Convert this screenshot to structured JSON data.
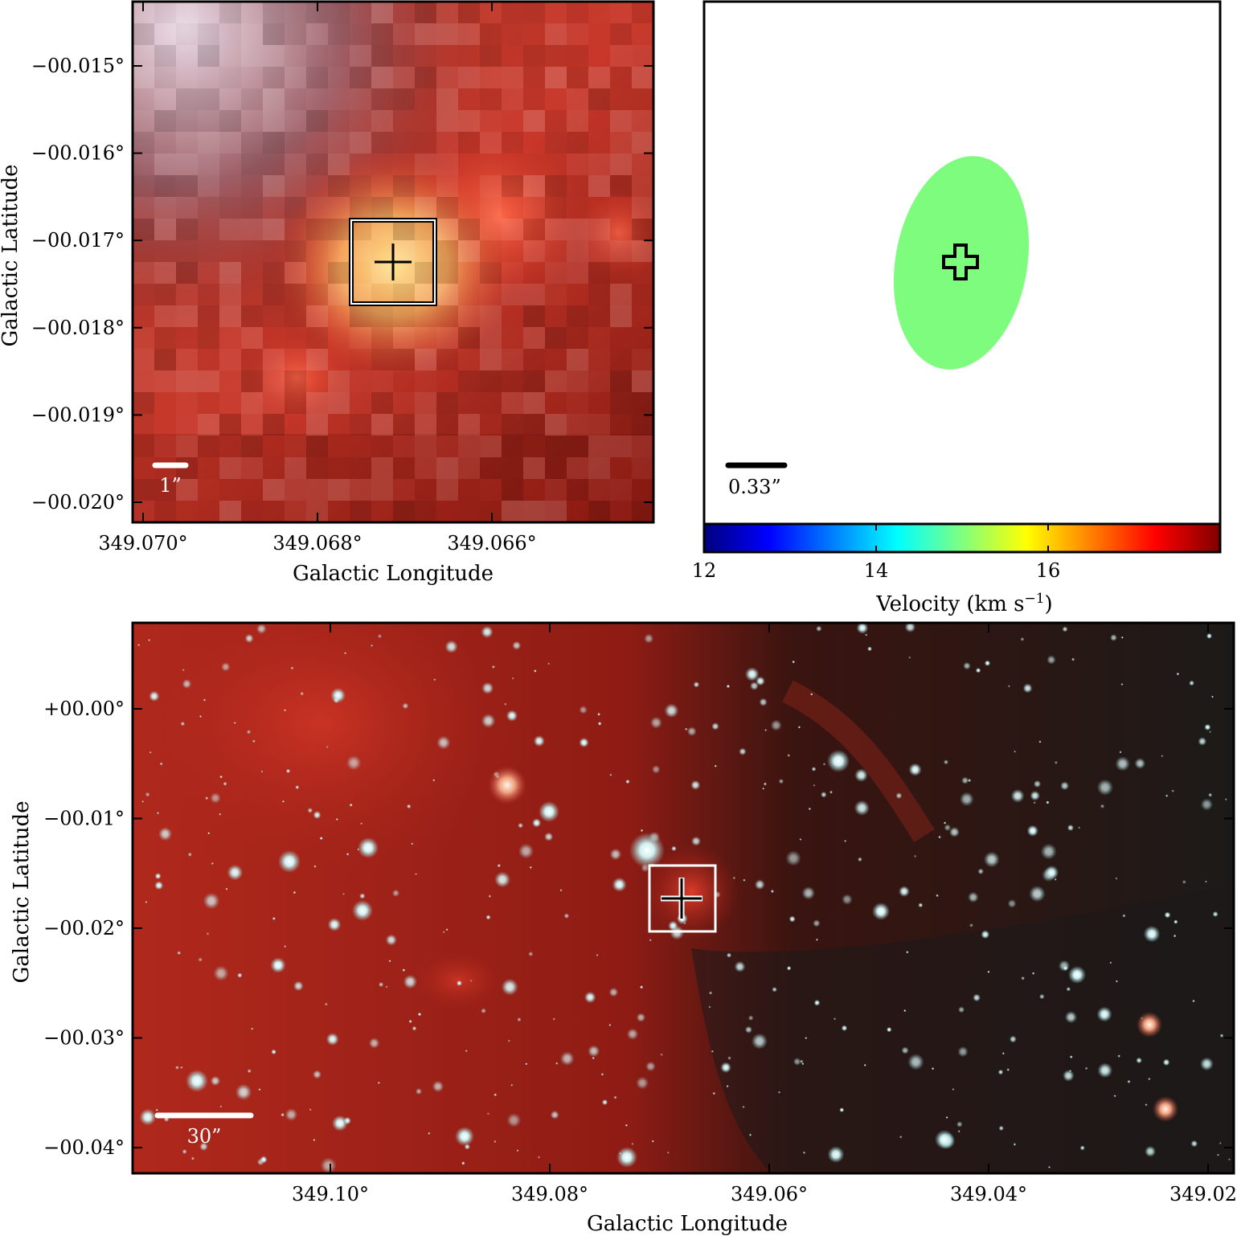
{
  "panels": {
    "top_left": {
      "ylabel": "Galactic Latitude",
      "xlabel": "Galactic Longitude",
      "y_ticks": [
        "−00.015°",
        "−00.016°",
        "−00.017°",
        "−00.018°",
        "−00.019°",
        "−00.020°"
      ],
      "x_ticks": [
        "349.070°",
        "349.068°",
        "349.066°"
      ],
      "scalebar_label": "1”"
    },
    "top_right": {
      "scalebar_label": "0.33”",
      "ellipse_color": "#7dfc7d",
      "colorbar": {
        "ticks": [
          "12",
          "14",
          "16"
        ],
        "label_main": "Velocity (km s",
        "label_sup": "−1",
        "label_close": ")",
        "colormap": "jet"
      }
    },
    "bottom": {
      "ylabel": "Galactic Latitude",
      "xlabel": "Galactic Longitude",
      "y_ticks": [
        "+00.00°",
        "−00.01°",
        "−00.02°",
        "−00.03°",
        "−00.04°"
      ],
      "x_ticks": [
        "349.10°",
        "349.08°",
        "349.06°",
        "349.04°",
        "349.02°"
      ],
      "scalebar_label": "30”"
    }
  }
}
